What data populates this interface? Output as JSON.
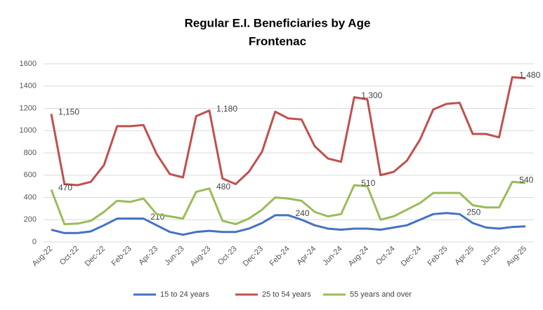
{
  "chart_data": {
    "type": "line",
    "title": "Regular E.I. Beneficiaries by Age",
    "subtitle": "Frontenac",
    "categories": [
      "Aug-22",
      null,
      "Oct-22",
      null,
      "Dec-22",
      null,
      "Feb-23",
      null,
      "Apr-23",
      null,
      "Jun-23",
      null,
      "Aug-23",
      null,
      "Oct-23",
      null,
      "Dec-23",
      null,
      "Feb-24",
      null,
      "Apr-24",
      null,
      "Jun-24",
      null,
      "Aug-24",
      null,
      "Oct-24",
      null,
      "Dec-24",
      null,
      "Feb-25",
      null,
      "Apr-25",
      null,
      "Jun-25",
      null,
      "Aug-25"
    ],
    "series": [
      {
        "name": "15 to 24 years",
        "color": "#4472c4",
        "values": [
          110,
          80,
          80,
          95,
          150,
          210,
          210,
          210,
          150,
          90,
          65,
          90,
          100,
          90,
          90,
          120,
          170,
          240,
          240,
          200,
          150,
          120,
          110,
          120,
          120,
          110,
          130,
          150,
          200,
          250,
          260,
          250,
          170,
          130,
          120,
          135,
          140
        ],
        "value_labels": [
          null,
          null,
          null,
          null,
          null,
          null,
          null,
          "210",
          null,
          null,
          null,
          null,
          null,
          null,
          null,
          null,
          null,
          null,
          "240",
          null,
          null,
          null,
          null,
          null,
          null,
          null,
          null,
          null,
          null,
          null,
          null,
          "250",
          null,
          null,
          null,
          null,
          null
        ]
      },
      {
        "name": "25 to 54 years",
        "color": "#c0504d",
        "values": [
          1150,
          520,
          510,
          540,
          690,
          1040,
          1040,
          1050,
          790,
          610,
          580,
          1130,
          1180,
          570,
          520,
          630,
          810,
          1170,
          1110,
          1100,
          860,
          750,
          720,
          1300,
          1280,
          600,
          630,
          730,
          920,
          1190,
          1240,
          1250,
          970,
          970,
          940,
          1480,
          1470
        ],
        "value_labels": [
          "1,150",
          null,
          null,
          null,
          null,
          null,
          null,
          null,
          null,
          null,
          null,
          null,
          "1,180",
          null,
          null,
          null,
          null,
          null,
          null,
          null,
          null,
          null,
          null,
          "1,300",
          null,
          null,
          null,
          null,
          null,
          null,
          null,
          null,
          null,
          null,
          null,
          "1,480",
          null
        ]
      },
      {
        "name": "55 years and over",
        "color": "#9bbb59",
        "values": [
          470,
          160,
          165,
          190,
          270,
          370,
          360,
          390,
          250,
          230,
          210,
          450,
          480,
          190,
          160,
          210,
          290,
          400,
          390,
          370,
          270,
          230,
          250,
          510,
          500,
          200,
          230,
          290,
          350,
          440,
          440,
          440,
          330,
          310,
          310,
          540,
          530
        ],
        "value_labels": [
          "470",
          null,
          null,
          null,
          null,
          null,
          null,
          null,
          null,
          null,
          null,
          null,
          "480",
          null,
          null,
          null,
          null,
          null,
          null,
          null,
          null,
          null,
          null,
          "510",
          null,
          null,
          null,
          null,
          null,
          null,
          null,
          null,
          null,
          null,
          null,
          "540",
          null
        ]
      }
    ],
    "ylim": [
      0,
      1600
    ],
    "yticks": [
      0,
      200,
      400,
      600,
      800,
      1000,
      1200,
      1400,
      1600
    ],
    "grid": true,
    "legend": "bottom"
  }
}
